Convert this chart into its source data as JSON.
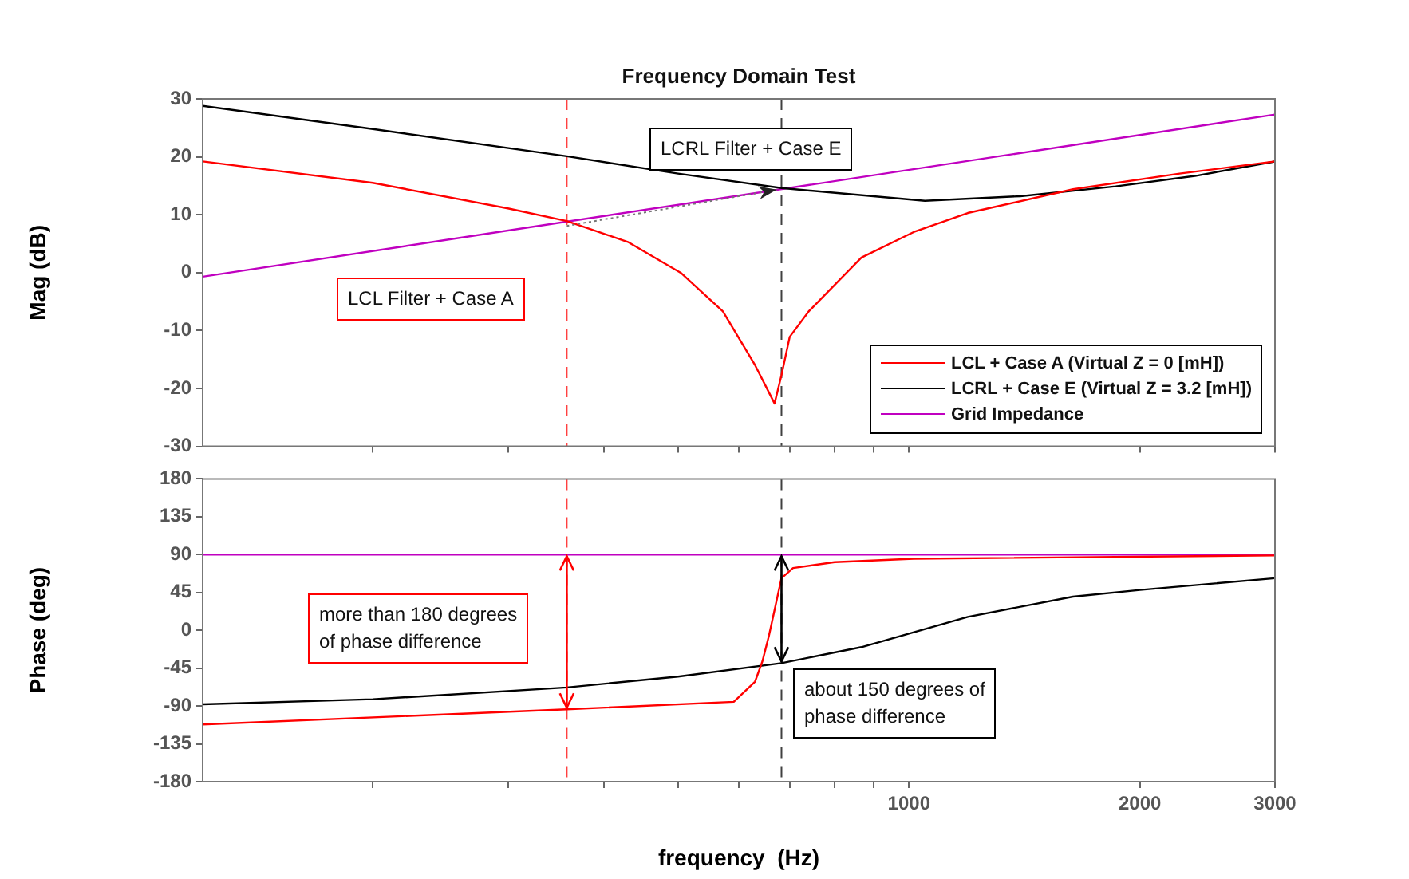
{
  "chart_data": [
    {
      "type": "line",
      "title": "Frequency Domain Test",
      "ylabel": "Mag (dB)",
      "log": "x",
      "xlim": [
        120,
        3000
      ],
      "xticks": [
        {
          "value": 200,
          "label": null
        },
        {
          "value": 300,
          "label": null
        },
        {
          "value": 400,
          "label": null
        },
        {
          "value": 500,
          "label": null
        },
        {
          "value": 600,
          "label": null
        },
        {
          "value": 700,
          "label": null
        },
        {
          "value": 800,
          "label": null
        },
        {
          "value": 900,
          "label": null
        },
        1000,
        2000,
        3000
      ],
      "ylim": [
        -30,
        30
      ],
      "yticks": [
        -30,
        -20,
        -10,
        0,
        10,
        20,
        30
      ],
      "tick_labels": "y",
      "grid": false,
      "legend": "bottom right",
      "series": [
        {
          "name": "LCL + Case A (Virtual Z = 0 [mH])",
          "color": "#ff0000",
          "x": [
            120,
            200,
            300,
            358,
            430,
            505,
            572,
            629,
            668,
            682,
            699,
            740,
            867,
            1014,
            1193,
            1636,
            2253,
            3000
          ],
          "values": [
            19.2,
            15.5,
            11.1,
            8.9,
            5.3,
            -0.1,
            -6.7,
            -15.8,
            -22.6,
            -17.7,
            -11.1,
            -6.7,
            2.6,
            7.0,
            10.3,
            14.4,
            17.1,
            19.2
          ]
        },
        {
          "name": "LCRL + Case E (Virtual Z = 3.2 [mH])",
          "color": "#000000",
          "x": [
            120,
            200,
            358,
            500,
            682,
            1049,
            1397,
            1860,
            2360,
            3000
          ],
          "values": [
            28.8,
            24.8,
            20.1,
            17.1,
            14.6,
            12.4,
            13.2,
            14.9,
            16.7,
            19.2
          ]
        },
        {
          "name": "Grid Impedance",
          "color": "#c000c0",
          "x": [
            120,
            3000
          ],
          "values": [
            -0.7,
            27.3
          ]
        }
      ],
      "ref_lines": [
        {
          "axis": "x",
          "value": 358,
          "color": "#ff4040",
          "line_style": "dashed"
        },
        {
          "axis": "x",
          "value": 682,
          "color": "#404040",
          "line_style": "dashed"
        }
      ],
      "annotations": [
        "LCRL Filter + Case E",
        "LCL Filter + Case A"
      ]
    },
    {
      "type": "line",
      "xlabel": "frequency  (Hz)",
      "ylabel": "Phase (deg)",
      "log": "x",
      "xlim": [
        120,
        3000
      ],
      "xticks": [
        {
          "value": 200,
          "label": null
        },
        {
          "value": 300,
          "label": null
        },
        {
          "value": 400,
          "label": null
        },
        {
          "value": 500,
          "label": null
        },
        {
          "value": 600,
          "label": null
        },
        {
          "value": 700,
          "label": null
        },
        {
          "value": 800,
          "label": null
        },
        {
          "value": 900,
          "label": null
        },
        1000,
        2000,
        3000
      ],
      "ylim": [
        -180,
        180
      ],
      "yticks": [
        -180,
        -135,
        -90,
        -45,
        0,
        45,
        90,
        135,
        180
      ],
      "grid": false,
      "series": [
        {
          "color": "#ff0000",
          "x": [
            120,
            358,
            591,
            630,
            644,
            657,
            682,
            706,
            800,
            1014,
            3000
          ],
          "values": [
            -112,
            -94,
            -85,
            -61,
            -37,
            -6,
            62,
            74,
            81,
            85,
            89
          ]
        },
        {
          "color": "#000000",
          "x": [
            120,
            200,
            358,
            500,
            682,
            867,
            1193,
            1636,
            2000,
            3000
          ],
          "values": [
            -88,
            -82,
            -68,
            -55,
            -39,
            -20,
            16,
            40,
            48,
            62
          ]
        },
        {
          "color": "#c000c0",
          "x": [
            120,
            3000
          ],
          "values": [
            90,
            90
          ]
        }
      ],
      "ref_lines": [
        {
          "axis": "x",
          "value": 358,
          "color": "#ff4040",
          "line_style": "dashed"
        },
        {
          "axis": "x",
          "value": 682,
          "color": "#404040",
          "line_style": "dashed"
        }
      ],
      "annotations": [
        "more than 180 degrees\nof phase difference",
        "about 150 degrees of\nphase difference"
      ]
    }
  ]
}
